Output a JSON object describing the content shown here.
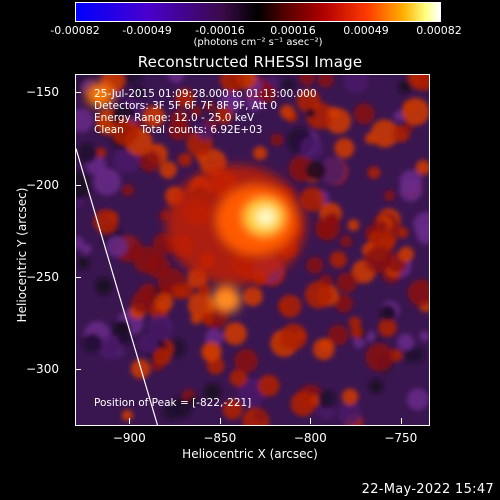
{
  "colorbar": {
    "ticks": [
      "-0.00082",
      "-0.00049",
      "-0.00016",
      "0.00016",
      "0.00049",
      "0.00082"
    ],
    "units": "(photons cm⁻² s⁻¹ asec⁻²)"
  },
  "title": "Reconstructed RHESSI Image",
  "info": {
    "time": "25-Jul-2015 01:09:28.000 to 01:13:00.000",
    "detectors": "Detectors: 3F 5F 6F 7F 8F 9F, Att 0",
    "energy": "Energy Range: 12.0 - 25.0 keV",
    "clean": "Clean     Total counts: 6.92E+03"
  },
  "peak_label": "Position of Peak = [-822,-221]",
  "timestamp": "22-May-2022 15:47",
  "chart_data": {
    "type": "heatmap",
    "title": "Reconstructed RHESSI Image",
    "xlabel": "Heliocentric X (arcsec)",
    "ylabel": "Heliocentric Y (arcsec)",
    "xlim": [
      -930,
      -735
    ],
    "ylim": [
      -330,
      -140
    ],
    "xticks": [
      -900,
      -850,
      -800,
      -750
    ],
    "yticks": [
      -150,
      -200,
      -250,
      -300
    ],
    "xtick_labels": [
      "−900",
      "−850",
      "−800",
      "−750"
    ],
    "ytick_labels": [
      "−150",
      "−200",
      "−250",
      "−300"
    ],
    "colorbar_range": [
      -0.00082,
      0.00082
    ],
    "peak": {
      "x": -822,
      "y": -221
    },
    "limb_line": [
      [
        -930,
        -180
      ],
      [
        -885,
        -330
      ]
    ]
  },
  "colors": {
    "background": "#000000",
    "text": "#ffffff"
  }
}
